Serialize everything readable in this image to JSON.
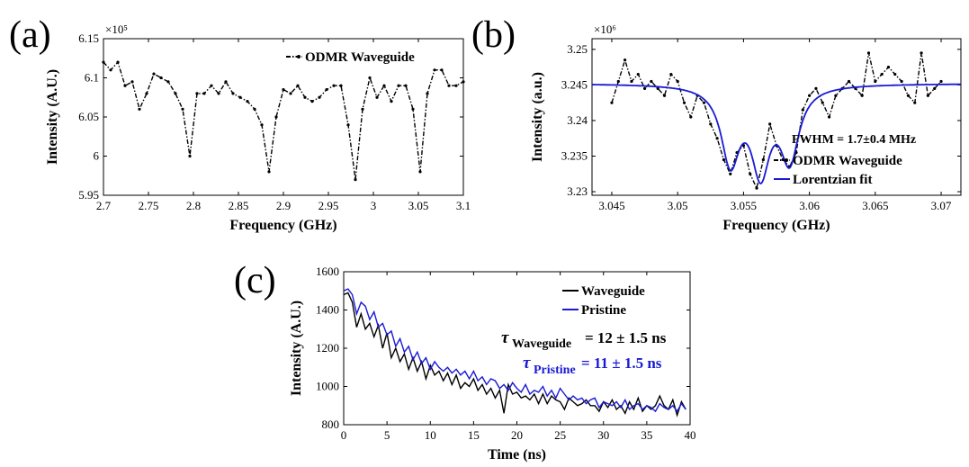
{
  "panels": {
    "a": {
      "label": "(a)"
    },
    "b": {
      "label": "(b)"
    },
    "c": {
      "label": "(c)"
    }
  },
  "annotations": {
    "b_multiplier": "×10⁶",
    "b_fwhm": "FWHM = 1.7±0.4 MHz",
    "c_tau_waveguide_symbol": "τ",
    "c_tau_waveguide_sub": "Waveguide",
    "c_tau_waveguide_value": "= 12 ± 1.5 ns",
    "c_tau_pristine_symbol": "τ",
    "c_tau_pristine_sub": "Pristine",
    "c_tau_pristine_value": "= 11 ± 1.5 ns"
  },
  "colors": {
    "black": "#000000",
    "blue": "#1a1ad6"
  },
  "chart_data": [
    {
      "type": "line",
      "xlabel": "Frequency (GHz)",
      "ylabel": "Intensity (A.U.)",
      "multiplier": "×10⁵",
      "xlim": [
        2.7,
        3.1
      ],
      "ylim": [
        5.95,
        6.15
      ],
      "xticks": [
        "2.7",
        "2.75",
        "2.8",
        "2.85",
        "2.9",
        "2.95",
        "3",
        "3.05",
        "3.1"
      ],
      "yticks": [
        "5.95",
        "6",
        "6.05",
        "6.1",
        "6.15"
      ],
      "legend": "top-right",
      "series": [
        {
          "name": "ODMR Waveguide",
          "style": "dash-dot-markers",
          "color": "#000000",
          "x": [
            2.7,
            2.708,
            2.716,
            2.724,
            2.732,
            2.74,
            2.748,
            2.756,
            2.764,
            2.772,
            2.78,
            2.788,
            2.796,
            2.804,
            2.812,
            2.82,
            2.828,
            2.836,
            2.844,
            2.852,
            2.86,
            2.868,
            2.876,
            2.884,
            2.892,
            2.9,
            2.908,
            2.916,
            2.924,
            2.932,
            2.94,
            2.948,
            2.956,
            2.964,
            2.972,
            2.98,
            2.988,
            2.996,
            3.004,
            3.012,
            3.02,
            3.028,
            3.036,
            3.044,
            3.052,
            3.06,
            3.068,
            3.076,
            3.084,
            3.092,
            3.1
          ],
          "y": [
            6.12,
            6.11,
            6.12,
            6.09,
            6.095,
            6.06,
            6.08,
            6.105,
            6.1,
            6.095,
            6.08,
            6.06,
            6.0,
            6.08,
            6.08,
            6.09,
            6.08,
            6.095,
            6.08,
            6.075,
            6.07,
            6.06,
            6.04,
            5.98,
            6.05,
            6.085,
            6.08,
            6.09,
            6.075,
            6.07,
            6.075,
            6.085,
            6.09,
            6.09,
            6.04,
            5.97,
            6.06,
            6.1,
            6.075,
            6.09,
            6.07,
            6.09,
            6.09,
            6.06,
            5.98,
            6.08,
            6.11,
            6.11,
            6.09,
            6.09,
            6.095
          ]
        }
      ]
    },
    {
      "type": "line",
      "xlabel": "Frequency (GHz)",
      "ylabel": "Intensity (a.u.)",
      "multiplier": "×10⁶",
      "xlim": [
        3.0435,
        3.0715
      ],
      "ylim": [
        3.2295,
        3.2515
      ],
      "xticks": [
        "3.045",
        "3.05",
        "3.055",
        "3.06",
        "3.065",
        "3.07"
      ],
      "yticks": [
        "3.23",
        "3.235",
        "3.24",
        "3.245",
        "3.25"
      ],
      "legend": "bottom-right",
      "series": [
        {
          "name": "ODMR Waveguide",
          "style": "dash-dot-markers",
          "color": "#000000",
          "x": [
            3.045,
            3.0455,
            3.046,
            3.0465,
            3.047,
            3.0475,
            3.048,
            3.0485,
            3.049,
            3.0495,
            3.05,
            3.0505,
            3.051,
            3.0515,
            3.052,
            3.0525,
            3.053,
            3.0535,
            3.054,
            3.0545,
            3.055,
            3.0555,
            3.056,
            3.0565,
            3.057,
            3.0575,
            3.058,
            3.0585,
            3.059,
            3.0595,
            3.06,
            3.0605,
            3.061,
            3.0615,
            3.062,
            3.0625,
            3.063,
            3.0635,
            3.064,
            3.0645,
            3.065,
            3.0655,
            3.066,
            3.0665,
            3.067,
            3.0675,
            3.068,
            3.0685,
            3.069,
            3.0695,
            3.07
          ],
          "y": [
            3.2425,
            3.2455,
            3.2485,
            3.2455,
            3.2465,
            3.2445,
            3.2455,
            3.2445,
            3.2435,
            3.2465,
            3.2455,
            3.2425,
            3.2405,
            3.2435,
            3.2425,
            3.2395,
            3.2375,
            3.2345,
            3.2325,
            3.2355,
            3.2365,
            3.2325,
            3.2305,
            3.2345,
            3.2395,
            3.2365,
            3.2345,
            3.2335,
            3.2355,
            3.2415,
            3.2435,
            3.2445,
            3.2425,
            3.2405,
            3.2435,
            3.2445,
            3.2455,
            3.2445,
            3.2435,
            3.2495,
            3.2455,
            3.2465,
            3.2475,
            3.2465,
            3.2455,
            3.2435,
            3.2425,
            3.2495,
            3.2435,
            3.2445,
            3.2455
          ]
        },
        {
          "name": "Lorentzian fit",
          "style": "solid",
          "color": "#1a1ad6",
          "baseline": 3.2452,
          "dips": [
            {
              "center": 3.054,
              "depth": 0.0105,
              "hwhm": 0.00085
            },
            {
              "center": 3.0563,
              "depth": 0.0115,
              "hwhm": 0.00085
            },
            {
              "center": 3.0585,
              "depth": 0.01,
              "hwhm": 0.00085
            }
          ]
        }
      ]
    },
    {
      "type": "line",
      "xlabel": "Time (ns)",
      "ylabel": "Intensity (A.U.)",
      "xlim": [
        0,
        40
      ],
      "ylim": [
        800,
        1600
      ],
      "xticks": [
        "0",
        "5",
        "10",
        "15",
        "20",
        "25",
        "30",
        "35",
        "40"
      ],
      "yticks": [
        "800",
        "1000",
        "1200",
        "1400",
        "1600"
      ],
      "legend": "top-right",
      "series": [
        {
          "name": "Waveguide",
          "color": "#000000",
          "x": [
            0,
            0.5,
            1,
            1.5,
            2,
            2.5,
            3,
            3.5,
            4,
            4.5,
            5,
            5.5,
            6,
            6.5,
            7,
            7.5,
            8,
            8.5,
            9,
            9.5,
            10,
            10.5,
            11,
            11.5,
            12,
            12.5,
            13,
            13.5,
            14,
            14.5,
            15,
            15.5,
            16,
            16.5,
            17,
            17.5,
            18,
            18.5,
            19,
            19.5,
            20,
            20.5,
            21,
            21.5,
            22,
            22.5,
            23,
            23.5,
            24,
            24.5,
            25,
            25.5,
            26,
            26.5,
            27,
            27.5,
            28,
            28.5,
            29,
            29.5,
            30,
            30.5,
            31,
            31.5,
            32,
            32.5,
            33,
            33.5,
            34,
            34.5,
            35,
            35.5,
            36,
            36.5,
            37,
            37.5,
            38,
            38.5,
            39,
            39.5
          ],
          "y": [
            1480,
            1490,
            1440,
            1310,
            1380,
            1300,
            1330,
            1260,
            1320,
            1200,
            1280,
            1150,
            1200,
            1130,
            1170,
            1090,
            1150,
            1080,
            1130,
            1040,
            1110,
            1060,
            1080,
            1030,
            1070,
            1010,
            1060,
            990,
            1020,
            1000,
            1040,
            980,
            1010,
            960,
            990,
            940,
            980,
            860,
            1010,
            960,
            970,
            940,
            950,
            930,
            960,
            910,
            960,
            910,
            950,
            930,
            920,
            880,
            940,
            920,
            900,
            910,
            930,
            900,
            900,
            870,
            920,
            890,
            930,
            880,
            900,
            860,
            920,
            880,
            940,
            870,
            900,
            880,
            900,
            950,
            900,
            880,
            930,
            850,
            920,
            880
          ]
        },
        {
          "name": "Pristine",
          "color": "#1a1ad6",
          "x": [
            0,
            0.5,
            1,
            1.5,
            2,
            2.5,
            3,
            3.5,
            4,
            4.5,
            5,
            5.5,
            6,
            6.5,
            7,
            7.5,
            8,
            8.5,
            9,
            9.5,
            10,
            10.5,
            11,
            11.5,
            12,
            12.5,
            13,
            13.5,
            14,
            14.5,
            15,
            15.5,
            16,
            16.5,
            17,
            17.5,
            18,
            18.5,
            19,
            19.5,
            20,
            20.5,
            21,
            21.5,
            22,
            22.5,
            23,
            23.5,
            24,
            24.5,
            25,
            25.5,
            26,
            26.5,
            27,
            27.5,
            28,
            28.5,
            29,
            29.5,
            30,
            30.5,
            31,
            31.5,
            32,
            32.5,
            33,
            33.5,
            34,
            34.5,
            35,
            35.5,
            36,
            36.5,
            37,
            37.5,
            38,
            38.5,
            39,
            39.5
          ],
          "y": [
            1500,
            1510,
            1480,
            1380,
            1440,
            1420,
            1350,
            1390,
            1310,
            1330,
            1270,
            1290,
            1210,
            1250,
            1180,
            1210,
            1140,
            1180,
            1120,
            1150,
            1090,
            1130,
            1100,
            1080,
            1100,
            1070,
            1090,
            1060,
            1080,
            1040,
            1080,
            1030,
            1050,
            1010,
            1040,
            1030,
            990,
            1010,
            980,
            1020,
            990,
            970,
            1010,
            960,
            980,
            970,
            1000,
            950,
            980,
            940,
            990,
            960,
            930,
            950,
            930,
            940,
            910,
            930,
            940,
            890,
            920,
            910,
            900,
            920,
            890,
            930,
            880,
            900,
            910,
            880,
            900,
            890,
            870,
            910,
            890,
            880,
            900,
            870,
            910,
            880
          ]
        }
      ]
    }
  ]
}
